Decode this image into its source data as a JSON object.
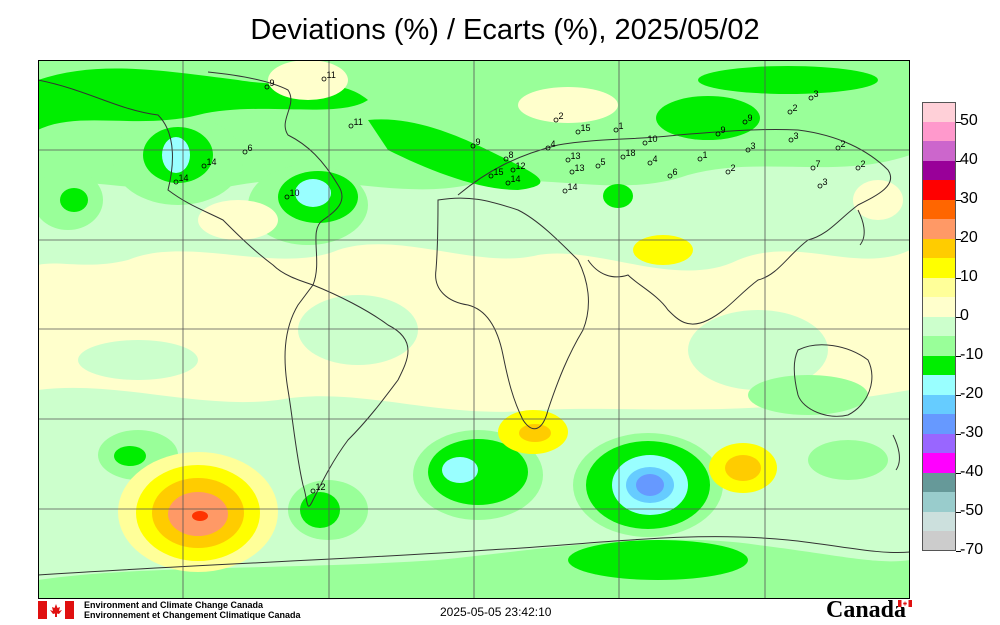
{
  "title": "Deviations (%) / Ecarts (%), 2025/05/02",
  "legend": {
    "bands": [
      {
        "color": "#ffd0d8"
      },
      {
        "color": "#ff99cc"
      },
      {
        "color": "#cc66cc"
      },
      {
        "color": "#990099"
      },
      {
        "color": "#ff0000"
      },
      {
        "color": "#ff6600"
      },
      {
        "color": "#ff9966"
      },
      {
        "color": "#ffcc00"
      },
      {
        "color": "#ffff00"
      },
      {
        "color": "#ffff99"
      },
      {
        "color": "#ffffcc"
      },
      {
        "color": "#ccffcc"
      },
      {
        "color": "#99ff99"
      },
      {
        "color": "#00ee00"
      },
      {
        "color": "#99ffff"
      },
      {
        "color": "#66ccff"
      },
      {
        "color": "#6699ff"
      },
      {
        "color": "#9966ff"
      },
      {
        "color": "#ff00ff"
      },
      {
        "color": "#669999"
      },
      {
        "color": "#99cccc"
      },
      {
        "color": "#cce0dd"
      },
      {
        "color": "#cccccc"
      }
    ],
    "labels": [
      "50",
      "40",
      "30",
      "20",
      "10",
      "0",
      "-10",
      "-20",
      "-30",
      "-40",
      "-50",
      "-70"
    ]
  },
  "stations": [
    {
      "label": "11"
    },
    {
      "label": "9"
    },
    {
      "label": "6"
    },
    {
      "label": "11"
    },
    {
      "label": "14"
    },
    {
      "label": "14"
    },
    {
      "label": "10"
    },
    {
      "label": "9"
    },
    {
      "label": "8"
    },
    {
      "label": "2"
    },
    {
      "label": "4"
    },
    {
      "label": "15"
    },
    {
      "label": "1"
    },
    {
      "label": "12"
    },
    {
      "label": "15"
    },
    {
      "label": "14"
    },
    {
      "label": "13"
    },
    {
      "label": "13"
    },
    {
      "label": "5"
    },
    {
      "label": "18"
    },
    {
      "label": "10"
    },
    {
      "label": "4"
    },
    {
      "label": "6"
    },
    {
      "label": "14"
    },
    {
      "label": "1"
    },
    {
      "label": "2"
    },
    {
      "label": "9"
    },
    {
      "label": "9"
    },
    {
      "label": "3"
    },
    {
      "label": "2"
    },
    {
      "label": "3"
    },
    {
      "label": "3"
    },
    {
      "label": "2"
    },
    {
      "label": "7"
    },
    {
      "label": "3"
    },
    {
      "label": "2"
    },
    {
      "label": "12"
    }
  ],
  "footer": {
    "org_en": "Environment and Climate Change Canada",
    "org_fr": "Environnement et Changement Climatique Canada",
    "timestamp": "2025-05-05 23:42:10",
    "wordmark": "Canada"
  }
}
